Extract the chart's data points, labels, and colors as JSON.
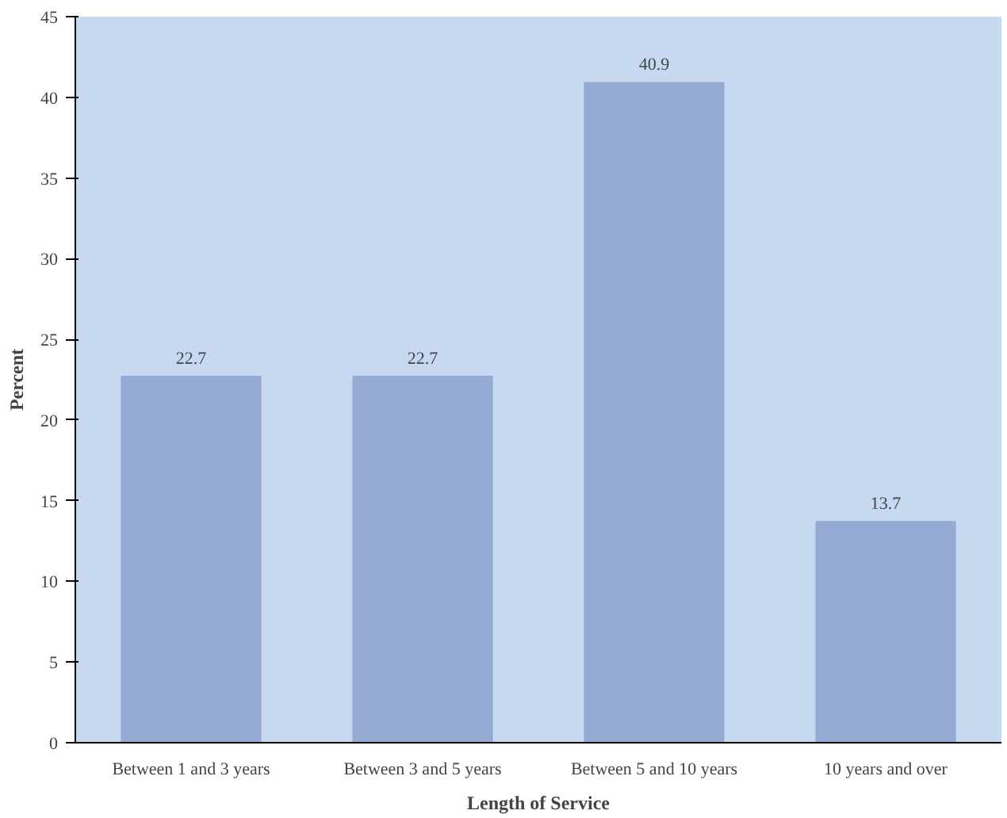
{
  "chart_data": {
    "type": "bar",
    "xlabel": "Length of Service",
    "ylabel": "Percent",
    "categories": [
      "Between 1 and 3 years",
      "Between 3 and 5 years",
      "Between 5 and 10 years",
      "10 years and over"
    ],
    "values": [
      22.7,
      22.7,
      40.9,
      13.7
    ],
    "color": "#95abd3",
    "data_labels": true,
    "grid": false,
    "ylim": [
      0,
      45
    ],
    "yticks": [
      0,
      5,
      10,
      15,
      20,
      25,
      30,
      35,
      40,
      45
    ]
  }
}
